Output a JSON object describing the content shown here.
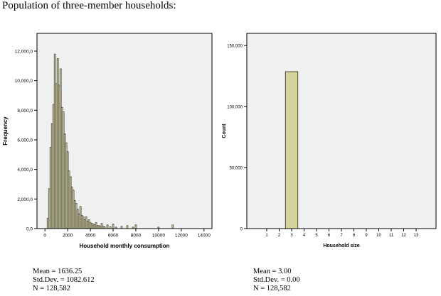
{
  "heading": "Population of three-member households:",
  "colors": {
    "plot_bg": "#f0f0f0",
    "bar_fill": "#d6d29c",
    "bar_stroke": "#222222",
    "frame": "#000000"
  },
  "chart_data": [
    {
      "type": "bar",
      "title": "",
      "xlabel": "Household monthly consumption",
      "ylabel": "Frequency",
      "xlim": [
        -700,
        14700
      ],
      "ylim": [
        0,
        13200
      ],
      "xticks": [
        0,
        2000,
        4000,
        6000,
        8000,
        10000,
        12000,
        14000
      ],
      "xtick_labels": [
        "0",
        "2000",
        "4000",
        "6000",
        "8000",
        "10000",
        "12000",
        "14000"
      ],
      "yticks": [
        0,
        2000,
        4000,
        6000,
        8000,
        10000,
        12000
      ],
      "ytick_labels": [
        "0,0",
        "2,000,0",
        "4,000,0",
        "6,000,0",
        "8,000,0",
        "10,000,0",
        "12,000,0"
      ],
      "bin_width": 125,
      "bins": [
        {
          "x": 250,
          "value": 700
        },
        {
          "x": 375,
          "value": 2700
        },
        {
          "x": 500,
          "value": 5500
        },
        {
          "x": 625,
          "value": 7100
        },
        {
          "x": 750,
          "value": 8400
        },
        {
          "x": 875,
          "value": 11800
        },
        {
          "x": 1000,
          "value": 9800
        },
        {
          "x": 1125,
          "value": 11500
        },
        {
          "x": 1250,
          "value": 9700
        },
        {
          "x": 1375,
          "value": 10800
        },
        {
          "x": 1500,
          "value": 8200
        },
        {
          "x": 1625,
          "value": 7900
        },
        {
          "x": 1750,
          "value": 6400
        },
        {
          "x": 1875,
          "value": 5800
        },
        {
          "x": 2000,
          "value": 5200
        },
        {
          "x": 2125,
          "value": 3900
        },
        {
          "x": 2250,
          "value": 3500
        },
        {
          "x": 2375,
          "value": 2800
        },
        {
          "x": 2500,
          "value": 2600
        },
        {
          "x": 2625,
          "value": 1900
        },
        {
          "x": 2750,
          "value": 1700
        },
        {
          "x": 2875,
          "value": 1300
        },
        {
          "x": 3000,
          "value": 1000
        },
        {
          "x": 3125,
          "value": 1500
        },
        {
          "x": 3250,
          "value": 900
        },
        {
          "x": 3375,
          "value": 800
        },
        {
          "x": 3500,
          "value": 600
        },
        {
          "x": 3625,
          "value": 800
        },
        {
          "x": 3750,
          "value": 500
        },
        {
          "x": 3875,
          "value": 600
        },
        {
          "x": 4000,
          "value": 400
        },
        {
          "x": 4125,
          "value": 350
        },
        {
          "x": 4250,
          "value": 300
        },
        {
          "x": 4375,
          "value": 250
        },
        {
          "x": 4500,
          "value": 400
        },
        {
          "x": 4625,
          "value": 200
        },
        {
          "x": 4750,
          "value": 200
        },
        {
          "x": 4875,
          "value": 150
        },
        {
          "x": 5000,
          "value": 350
        },
        {
          "x": 5125,
          "value": 150
        },
        {
          "x": 5250,
          "value": 120
        },
        {
          "x": 5500,
          "value": 250
        },
        {
          "x": 5750,
          "value": 120
        },
        {
          "x": 6000,
          "value": 300
        },
        {
          "x": 6250,
          "value": 100
        },
        {
          "x": 6750,
          "value": 150
        },
        {
          "x": 7250,
          "value": 200
        },
        {
          "x": 7750,
          "value": 100
        },
        {
          "x": 8000,
          "value": 250
        },
        {
          "x": 10000,
          "value": 100
        },
        {
          "x": 11250,
          "value": 250
        }
      ],
      "stats": [
        "Mean = 1636.25",
        "Std.Dev. = 1082.612",
        "N = 128,582"
      ]
    },
    {
      "type": "bar",
      "title": "",
      "xlabel": "Household size",
      "ylabel": "Count",
      "xlim": [
        -0.6,
        14.6
      ],
      "ylim": [
        0,
        160000
      ],
      "xticks": [
        1,
        2,
        3,
        4,
        5,
        6,
        7,
        8,
        9,
        10,
        11,
        12,
        13
      ],
      "xtick_labels": [
        "1",
        "2",
        "3",
        "4",
        "5",
        "6",
        "7",
        "8",
        "9",
        "10",
        "11",
        "12",
        "13"
      ],
      "yticks": [
        0,
        50000,
        100000,
        150000
      ],
      "ytick_labels": [
        "0",
        "50,000",
        "100,000",
        "150,000"
      ],
      "bin_width": 1,
      "bins": [
        {
          "x": 3,
          "value": 128582
        }
      ],
      "stats": [
        "Mean = 3.00",
        "Std.Dev. = 0.00",
        "N = 128,582"
      ]
    }
  ]
}
